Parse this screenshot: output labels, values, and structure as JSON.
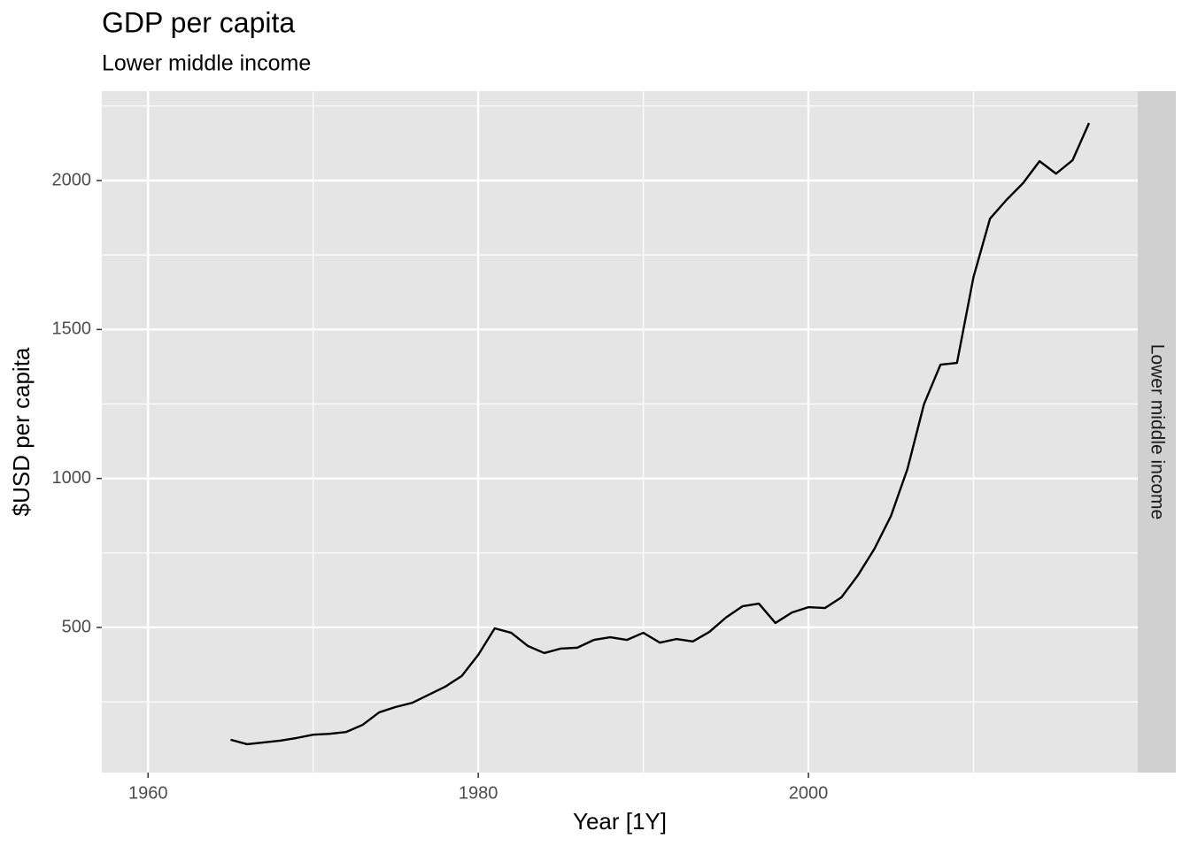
{
  "chart_data": {
    "type": "line",
    "title": "GDP per capita",
    "subtitle": "Lower middle income",
    "x_label": "Year [1Y]",
    "y_label": "$USD per capita",
    "facet_label": "Lower middle income",
    "x": [
      1965,
      1966,
      1967,
      1968,
      1969,
      1970,
      1971,
      1972,
      1973,
      1974,
      1975,
      1976,
      1977,
      1978,
      1979,
      1980,
      1981,
      1982,
      1983,
      1984,
      1985,
      1986,
      1987,
      1988,
      1989,
      1990,
      1991,
      1992,
      1993,
      1994,
      1995,
      1996,
      1997,
      1998,
      1999,
      2000,
      2001,
      2002,
      2003,
      2004,
      2005,
      2006,
      2007,
      2008,
      2009,
      2010,
      2011,
      2012,
      2013,
      2014,
      2015,
      2016,
      2017
    ],
    "series": [
      {
        "name": "Lower middle income",
        "color": "#000000",
        "values": [
          123,
          108,
          114,
          120,
          129,
          140,
          143,
          149,
          173,
          215,
          233,
          247,
          274,
          301,
          337,
          408,
          497,
          482,
          438,
          414,
          429,
          432,
          458,
          467,
          458,
          482,
          449,
          461,
          453,
          485,
          533,
          571,
          580,
          515,
          550,
          568,
          565,
          601,
          675,
          764,
          874,
          1032,
          1249,
          1382,
          1388,
          1676,
          1872,
          1935,
          1991,
          2065,
          2023,
          2068,
          2193
        ]
      }
    ],
    "xlim": [
      1957.2,
      2019.95
    ],
    "xticks": [
      1960,
      1980,
      2000
    ],
    "x_minor_ticks": [
      1970,
      1990,
      2010
    ],
    "ylim": [
      12.8,
      2300
    ],
    "yticks": [
      500,
      1000,
      1500,
      2000
    ],
    "y_minor_ticks": [
      250,
      750,
      1250,
      1750,
      2250
    ],
    "grid": true
  }
}
